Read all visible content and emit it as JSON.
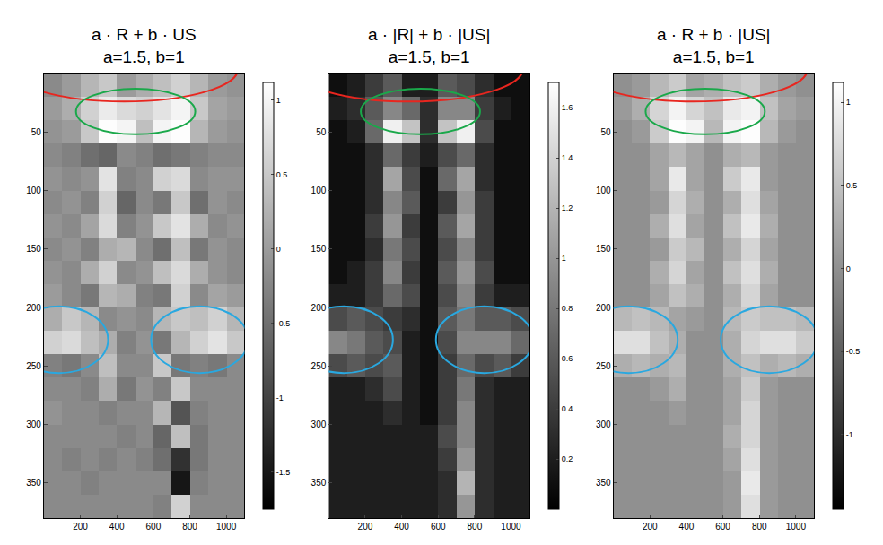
{
  "chart_data": [
    {
      "type": "heatmap",
      "title": "a · R + b · US",
      "subtitle": "a=1.5, b=1",
      "x": [
        50,
        150,
        250,
        350,
        450,
        550,
        650,
        750,
        850,
        950,
        1050
      ],
      "y": [
        10,
        30,
        50,
        70,
        90,
        110,
        130,
        150,
        170,
        190,
        210,
        230,
        250,
        270,
        290,
        310,
        330,
        350,
        370
      ],
      "values": [
        [
          -0.2,
          0,
          0.3,
          0.5,
          0,
          0.2,
          0.4,
          0.6,
          0.3,
          0,
          -0.1
        ],
        [
          0,
          0.2,
          0.6,
          0.9,
          0.7,
          0.6,
          0.8,
          1.0,
          0.5,
          0.1,
          0
        ],
        [
          -0.1,
          0,
          0.5,
          1.1,
          1.0,
          0.4,
          1.0,
          1.1,
          0.3,
          0,
          -0.1
        ],
        [
          -0.2,
          -0.3,
          -0.5,
          -0.6,
          -0.2,
          -0.3,
          -0.5,
          -0.4,
          -0.3,
          -0.2,
          -0.2
        ],
        [
          -0.1,
          -0.2,
          -0.1,
          0.8,
          -0.3,
          -0.2,
          0.6,
          0.7,
          -0.2,
          -0.1,
          -0.1
        ],
        [
          -0.2,
          -0.1,
          -0.3,
          0.6,
          -0.6,
          -0.2,
          -0.4,
          0.5,
          -0.5,
          -0.1,
          -0.2
        ],
        [
          -0.1,
          -0.2,
          0.1,
          0.7,
          -0.3,
          -0.1,
          0.5,
          0.8,
          0.2,
          -0.2,
          -0.1
        ],
        [
          -0.2,
          -0.1,
          -0.3,
          0.2,
          0.3,
          -0.2,
          -0.5,
          0.4,
          -0.4,
          -0.1,
          -0.2
        ],
        [
          -0.1,
          -0.2,
          0.2,
          0.6,
          -0.2,
          -0.1,
          0.4,
          0.7,
          0.2,
          -0.1,
          -0.2
        ],
        [
          0,
          -0.2,
          -0.4,
          0.3,
          0.2,
          -0.3,
          -0.4,
          0.6,
          -0.2,
          0.1,
          0
        ],
        [
          0.2,
          0.5,
          0.3,
          -0.2,
          -0.1,
          -0.2,
          0.3,
          0.5,
          0.4,
          0.6,
          0.3
        ],
        [
          0.6,
          0.7,
          0.4,
          0.2,
          -0.3,
          -0.1,
          -0.4,
          0.3,
          0.6,
          0.8,
          0.5
        ],
        [
          -0.3,
          -0.4,
          -0.2,
          0.4,
          -0.2,
          -0.2,
          0.5,
          -0.4,
          -0.3,
          -0.4,
          -0.2
        ],
        [
          -0.2,
          -0.2,
          -0.3,
          0.2,
          -0.4,
          -0.1,
          -0.3,
          0.5,
          -0.2,
          -0.2,
          -0.2
        ],
        [
          -0.1,
          -0.2,
          -0.2,
          -0.3,
          -0.2,
          -0.2,
          0.3,
          -0.8,
          -0.3,
          -0.2,
          -0.2
        ],
        [
          -0.2,
          -0.2,
          -0.2,
          -0.2,
          -0.3,
          -0.2,
          -0.6,
          0.4,
          -0.4,
          -0.2,
          -0.2
        ],
        [
          -0.2,
          -0.3,
          -0.2,
          -0.3,
          -0.2,
          -0.3,
          -0.5,
          -1.2,
          -0.4,
          -0.2,
          -0.2
        ],
        [
          -0.2,
          -0.2,
          -0.3,
          -0.2,
          -0.2,
          -0.2,
          -0.2,
          -1.5,
          -0.3,
          -0.2,
          -0.2
        ],
        [
          -0.2,
          -0.2,
          -0.2,
          -0.2,
          -0.2,
          -0.2,
          -0.3,
          0.6,
          -0.2,
          -0.2,
          -0.2
        ]
      ],
      "xlim": [
        0,
        1100
      ],
      "xticks": [
        200,
        400,
        600,
        800,
        1000
      ],
      "ylim": [
        380,
        0
      ],
      "yticks": [
        50,
        100,
        150,
        200,
        250,
        300,
        350
      ],
      "zlim": [
        -1.75,
        1.12
      ],
      "zticks": [
        -1.5,
        -1,
        -0.5,
        0,
        0.5,
        1
      ],
      "highlights": [
        {
          "color": "#e8261f",
          "x": [
            -185,
            1065
          ],
          "y": [
            -32,
            24
          ]
        },
        {
          "color": "#1aa84a",
          "x": [
            176,
            830
          ],
          "y": [
            13,
            52
          ]
        },
        {
          "color": "#29a8e0",
          "x": [
            -186,
            352
          ],
          "y": [
            199,
            256
          ]
        },
        {
          "color": "#29a8e0",
          "x": [
            588,
            1120
          ],
          "y": [
            199,
            256
          ]
        }
      ]
    },
    {
      "type": "heatmap",
      "title": "a · |R| + b · |US|",
      "subtitle": "a=1.5, b=1",
      "x": [
        50,
        150,
        250,
        350,
        450,
        550,
        650,
        750,
        850,
        950,
        1050
      ],
      "y": [
        10,
        30,
        50,
        70,
        90,
        110,
        130,
        150,
        170,
        190,
        210,
        230,
        250,
        270,
        290,
        310,
        330,
        350,
        370
      ],
      "values": [
        [
          0.1,
          0.2,
          0.4,
          0.6,
          0.2,
          0.2,
          0.6,
          0.5,
          0.3,
          0.1,
          0.1
        ],
        [
          0.2,
          0.3,
          0.6,
          0.9,
          0.7,
          0.3,
          0.9,
          0.9,
          0.4,
          0.2,
          0.1
        ],
        [
          0.1,
          0.2,
          0.7,
          1.6,
          1.3,
          0.3,
          1.3,
          1.6,
          0.5,
          0.1,
          0.1
        ],
        [
          0.1,
          0.1,
          0.3,
          0.7,
          0.4,
          0.2,
          0.5,
          0.7,
          0.3,
          0.1,
          0.1
        ],
        [
          0.1,
          0.1,
          0.3,
          1.1,
          0.5,
          0.1,
          0.7,
          1.1,
          0.3,
          0.1,
          0.1
        ],
        [
          0.1,
          0.1,
          0.3,
          0.9,
          0.6,
          0.1,
          0.4,
          1.0,
          0.4,
          0.1,
          0.1
        ],
        [
          0.1,
          0.1,
          0.4,
          1.0,
          0.4,
          0.1,
          0.6,
          1.1,
          0.4,
          0.1,
          0.1
        ],
        [
          0.1,
          0.1,
          0.3,
          0.8,
          0.5,
          0.1,
          0.5,
          0.9,
          0.4,
          0.1,
          0.1
        ],
        [
          0.1,
          0.2,
          0.4,
          0.9,
          0.4,
          0.1,
          0.6,
          1.0,
          0.5,
          0.1,
          0.1
        ],
        [
          0.2,
          0.2,
          0.4,
          0.7,
          0.5,
          0.1,
          0.5,
          0.9,
          0.4,
          0.2,
          0.2
        ],
        [
          0.5,
          0.6,
          0.5,
          0.4,
          0.3,
          0.1,
          0.6,
          0.8,
          0.6,
          0.6,
          0.5
        ],
        [
          0.9,
          0.8,
          0.6,
          0.5,
          0.2,
          0.1,
          0.5,
          0.9,
          0.9,
          0.9,
          0.7
        ],
        [
          0.5,
          0.6,
          0.5,
          0.6,
          0.2,
          0.1,
          0.4,
          0.7,
          0.5,
          0.6,
          0.4
        ],
        [
          0.2,
          0.2,
          0.3,
          0.5,
          0.2,
          0.1,
          0.4,
          0.8,
          0.3,
          0.2,
          0.2
        ],
        [
          0.2,
          0.2,
          0.2,
          0.3,
          0.2,
          0.1,
          0.4,
          0.9,
          0.3,
          0.2,
          0.2
        ],
        [
          0.2,
          0.2,
          0.2,
          0.2,
          0.2,
          0.2,
          0.5,
          0.9,
          0.3,
          0.2,
          0.2
        ],
        [
          0.2,
          0.2,
          0.2,
          0.2,
          0.2,
          0.2,
          0.4,
          1.0,
          0.3,
          0.2,
          0.2
        ],
        [
          0.2,
          0.2,
          0.2,
          0.2,
          0.2,
          0.2,
          0.3,
          1.2,
          0.3,
          0.2,
          0.2
        ],
        [
          0.2,
          0.2,
          0.2,
          0.2,
          0.2,
          0.2,
          0.3,
          1.0,
          0.3,
          0.2,
          0.2
        ]
      ],
      "xlim": [
        0,
        1100
      ],
      "xticks": [
        200,
        400,
        600,
        800,
        1000
      ],
      "ylim": [
        380,
        0
      ],
      "yticks": [
        50,
        100,
        150,
        200,
        250,
        300,
        350
      ],
      "zlim": [
        0,
        1.7
      ],
      "zticks": [
        0.2,
        0.4,
        0.6,
        0.8,
        1,
        1.2,
        1.4,
        1.6
      ],
      "highlights": [
        {
          "color": "#e8261f",
          "x": [
            -185,
            1065
          ],
          "y": [
            -32,
            24
          ]
        },
        {
          "color": "#1aa84a",
          "x": [
            176,
            830
          ],
          "y": [
            13,
            52
          ]
        },
        {
          "color": "#29a8e0",
          "x": [
            -186,
            352
          ],
          "y": [
            199,
            256
          ]
        },
        {
          "color": "#29a8e0",
          "x": [
            588,
            1120
          ],
          "y": [
            199,
            256
          ]
        }
      ]
    },
    {
      "type": "heatmap",
      "title": "a · R + b · |US|",
      "subtitle": "a=1.5, b=1",
      "x": [
        50,
        150,
        250,
        350,
        450,
        550,
        650,
        750,
        850,
        950,
        1050
      ],
      "y": [
        10,
        30,
        50,
        70,
        90,
        110,
        130,
        150,
        170,
        190,
        210,
        230,
        250,
        270,
        290,
        310,
        330,
        350,
        370
      ],
      "values": [
        [
          0,
          0.1,
          0.4,
          0.6,
          0.2,
          0.3,
          0.5,
          0.6,
          0.3,
          0.1,
          0
        ],
        [
          0.1,
          0.3,
          0.7,
          1.0,
          0.7,
          0.5,
          0.9,
          1.0,
          0.5,
          0.2,
          0.1
        ],
        [
          0,
          0.1,
          0.6,
          1.1,
          1.0,
          0.4,
          1.0,
          1.1,
          0.4,
          0.1,
          0
        ],
        [
          0,
          0,
          0.2,
          0.4,
          0.2,
          0,
          0.3,
          0.4,
          0.1,
          0,
          0
        ],
        [
          0,
          0,
          0.2,
          0.9,
          0.2,
          0,
          0.6,
          0.9,
          0.1,
          0,
          0
        ],
        [
          0,
          0,
          0.1,
          0.7,
          0.3,
          0,
          0.3,
          0.8,
          0.2,
          0,
          0
        ],
        [
          0,
          0,
          0.3,
          0.8,
          0.2,
          0,
          0.5,
          0.9,
          0.3,
          0,
          0
        ],
        [
          0,
          0,
          0.1,
          0.6,
          0.4,
          0,
          0.3,
          0.7,
          0.2,
          0,
          0
        ],
        [
          0,
          0,
          0.3,
          0.7,
          0.2,
          0,
          0.5,
          0.8,
          0.3,
          0,
          0
        ],
        [
          0,
          0,
          0.2,
          0.5,
          0.3,
          0,
          0.3,
          0.7,
          0.2,
          0,
          0
        ],
        [
          0.4,
          0.5,
          0.4,
          0.2,
          0.1,
          0,
          0.4,
          0.6,
          0.5,
          0.5,
          0.4
        ],
        [
          0.8,
          0.8,
          0.5,
          0.3,
          0,
          0,
          0.3,
          0.7,
          0.8,
          0.8,
          0.6
        ],
        [
          0.3,
          0.4,
          0.3,
          0.4,
          0,
          0,
          0.3,
          0.5,
          0.3,
          0.4,
          0.3
        ],
        [
          0,
          0,
          0.1,
          0.3,
          0,
          0,
          0.2,
          0.6,
          0.1,
          0,
          0
        ],
        [
          0,
          0,
          0,
          0.1,
          0,
          0,
          0.2,
          0.7,
          0.1,
          0,
          0
        ],
        [
          0,
          0,
          0,
          0,
          0,
          0,
          0.3,
          0.7,
          0.1,
          0,
          0
        ],
        [
          0,
          0,
          0,
          0,
          0,
          0,
          0.2,
          0.8,
          0.1,
          0,
          0
        ],
        [
          0,
          0,
          0,
          0,
          0,
          0,
          0.1,
          0.9,
          0.1,
          0,
          0
        ],
        [
          0,
          0,
          0,
          0,
          0,
          0,
          0.1,
          0.8,
          0.1,
          0,
          0
        ]
      ],
      "xlim": [
        0,
        1100
      ],
      "xticks": [
        200,
        400,
        600,
        800,
        1000
      ],
      "ylim": [
        380,
        0
      ],
      "yticks": [
        50,
        100,
        150,
        200,
        250,
        300,
        350
      ],
      "zlim": [
        -1.45,
        1.12
      ],
      "zticks": [
        -1,
        -0.5,
        0,
        0.5,
        1
      ],
      "highlights": [
        {
          "color": "#e8261f",
          "x": [
            -185,
            1065
          ],
          "y": [
            -32,
            24
          ]
        },
        {
          "color": "#1aa84a",
          "x": [
            176,
            830
          ],
          "y": [
            13,
            52
          ]
        },
        {
          "color": "#29a8e0",
          "x": [
            -186,
            352
          ],
          "y": [
            199,
            256
          ]
        },
        {
          "color": "#29a8e0",
          "x": [
            588,
            1120
          ],
          "y": [
            199,
            256
          ]
        }
      ]
    }
  ]
}
